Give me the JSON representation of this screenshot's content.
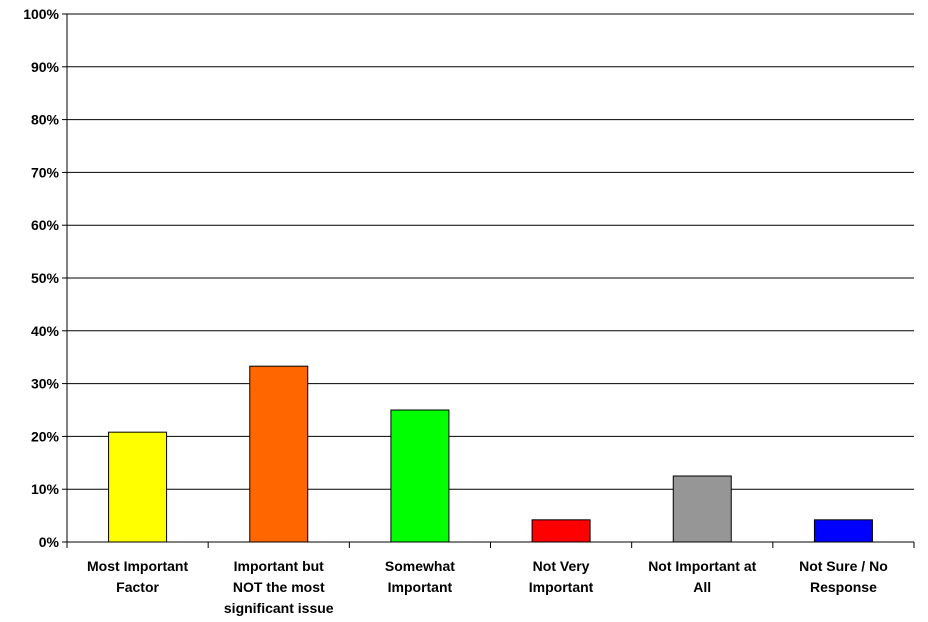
{
  "chart_data": {
    "type": "bar",
    "categories": [
      [
        "Most Important",
        "Factor"
      ],
      [
        "Important but",
        "NOT the most",
        "significant issue"
      ],
      [
        "Somewhat",
        "Important"
      ],
      [
        "Not Very",
        "Important"
      ],
      [
        "Not Important at",
        "All"
      ],
      [
        "Not Sure / No",
        "Response"
      ]
    ],
    "values": [
      20.8,
      33.3,
      25.0,
      4.2,
      12.5,
      4.2
    ],
    "colors": [
      "#FFFF00",
      "#FF6600",
      "#00FF00",
      "#FF0000",
      "#969696",
      "#0000FF"
    ],
    "ylim": [
      0,
      100
    ],
    "yticks": [
      "0%",
      "10%",
      "20%",
      "30%",
      "40%",
      "50%",
      "60%",
      "70%",
      "80%",
      "90%",
      "100%"
    ],
    "grid": true,
    "legend": "none"
  }
}
